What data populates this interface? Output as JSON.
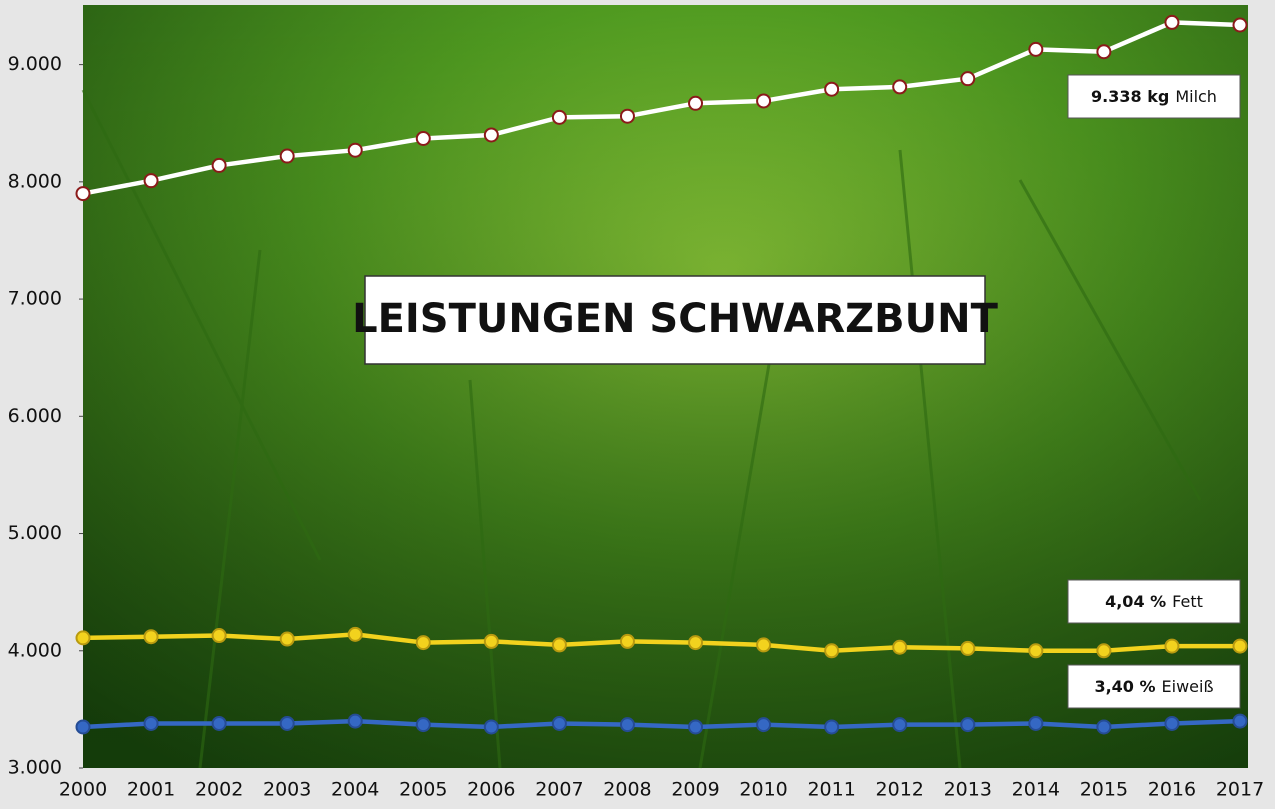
{
  "chart_data": {
    "type": "line",
    "title": "LEISTUNGEN SCHWARZBUNT",
    "categories": [
      "2000",
      "2001",
      "2002",
      "2003",
      "2004",
      "2005",
      "2006",
      "2007",
      "2008",
      "2009",
      "2010",
      "2011",
      "2012",
      "2013",
      "2014",
      "2015",
      "2016",
      "2017"
    ],
    "series": [
      {
        "color": "#ffffff",
        "marker_edge": "#8b1a1a",
        "values": [
          7900,
          8010,
          8140,
          8220,
          8270,
          8370,
          8400,
          8550,
          8560,
          8670,
          8690,
          8790,
          8810,
          8880,
          9130,
          9110,
          9360,
          9338
        ]
      },
      {
        "color": "#f2d21e",
        "marker_edge": "#b89a10",
        "values": [
          4110,
          4120,
          4130,
          4100,
          4140,
          4070,
          4080,
          4050,
          4080,
          4070,
          4050,
          4000,
          4030,
          4020,
          4000,
          4000,
          4040,
          4040
        ]
      },
      {
        "color": "#3568c4",
        "marker_edge": "#254c94",
        "values": [
          3350,
          3380,
          3380,
          3380,
          3400,
          3370,
          3350,
          3380,
          3370,
          3350,
          3370,
          3350,
          3370,
          3370,
          3380,
          3350,
          3380,
          3400
        ]
      }
    ],
    "annotations": [
      {
        "bold": "9.338 kg",
        "text": "Milch"
      },
      {
        "bold": "4,04 %",
        "text": "Fett"
      },
      {
        "bold": "3,40 %",
        "text": "Eiweiß"
      }
    ],
    "ylim": [
      3000,
      9500
    ],
    "yticks": [
      {
        "value": 3000,
        "label": "3.000"
      },
      {
        "value": 4000,
        "label": "4.000"
      },
      {
        "value": 5000,
        "label": "5.000"
      },
      {
        "value": 6000,
        "label": "6.000"
      },
      {
        "value": 7000,
        "label": "7.000"
      },
      {
        "value": 8000,
        "label": "8.000"
      },
      {
        "value": 9000,
        "label": "9.000"
      }
    ]
  }
}
